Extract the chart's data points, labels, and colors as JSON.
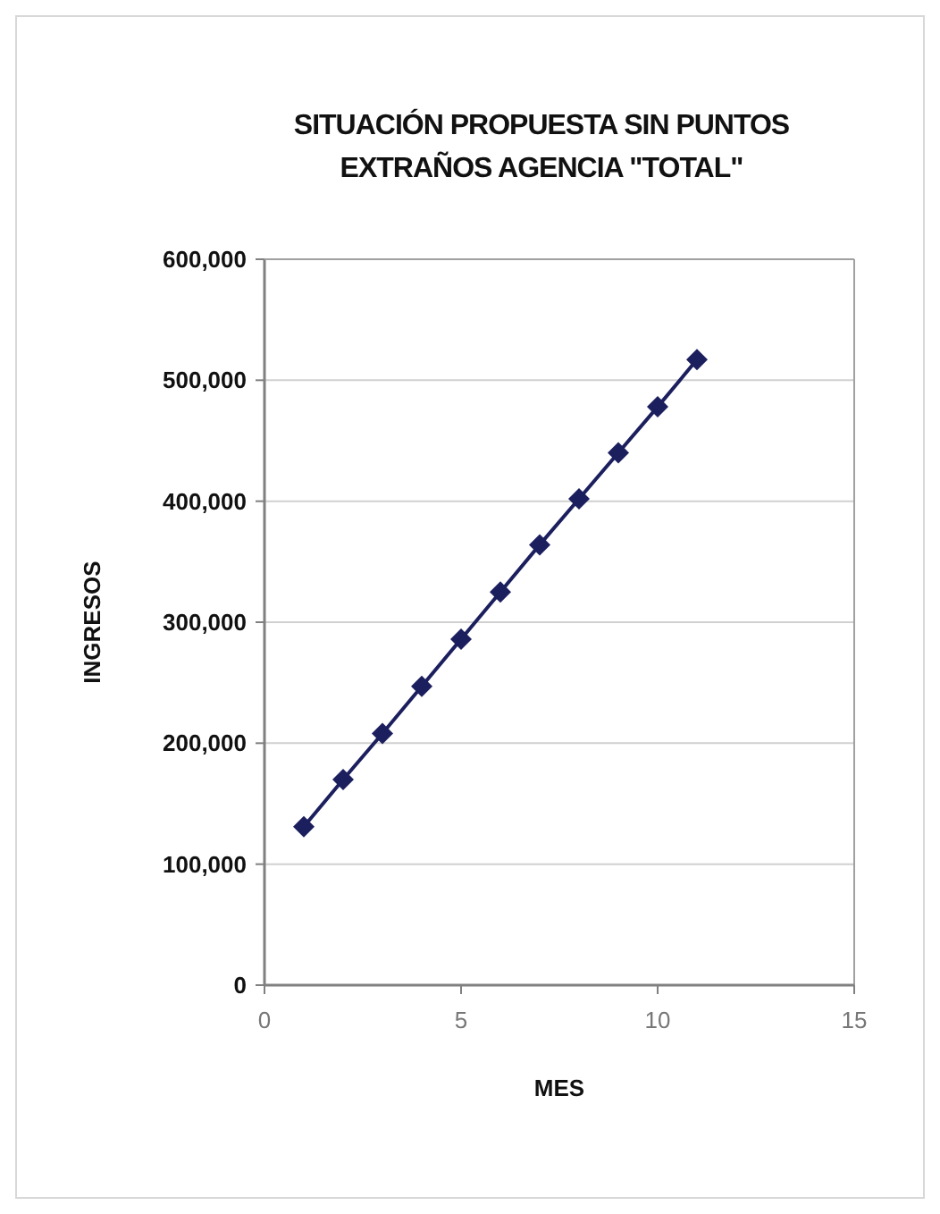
{
  "chart_data": {
    "type": "line",
    "title": "SITUACIÓN PROPUESTA SIN PUNTOS EXTRAÑOS AGENCIA \"TOTAL\"",
    "xlabel": "MES",
    "ylabel": "INGRESOS",
    "x": [
      1,
      2,
      3,
      4,
      5,
      6,
      7,
      8,
      9,
      10,
      11
    ],
    "series": [
      {
        "color": "#1c1f5e",
        "values": [
          131000,
          170000,
          208000,
          247000,
          286000,
          325000,
          364000,
          402000,
          440000,
          478000,
          517000
        ]
      }
    ],
    "xlim": [
      0,
      15
    ],
    "xticks": [
      0,
      5,
      10,
      15
    ],
    "ylim": [
      0,
      600000
    ],
    "yticks": [
      {
        "value": 0,
        "label": "0"
      },
      {
        "value": 100000,
        "label": "100,000"
      },
      {
        "value": 200000,
        "label": "200,000"
      },
      {
        "value": 300000,
        "label": "300,000"
      },
      {
        "value": 400000,
        "label": "400,000"
      },
      {
        "value": 500000,
        "label": "500,000"
      },
      {
        "value": 600000,
        "label": "600,000"
      }
    ],
    "grid": "y",
    "marker": "diamond",
    "line_style": "solid"
  }
}
